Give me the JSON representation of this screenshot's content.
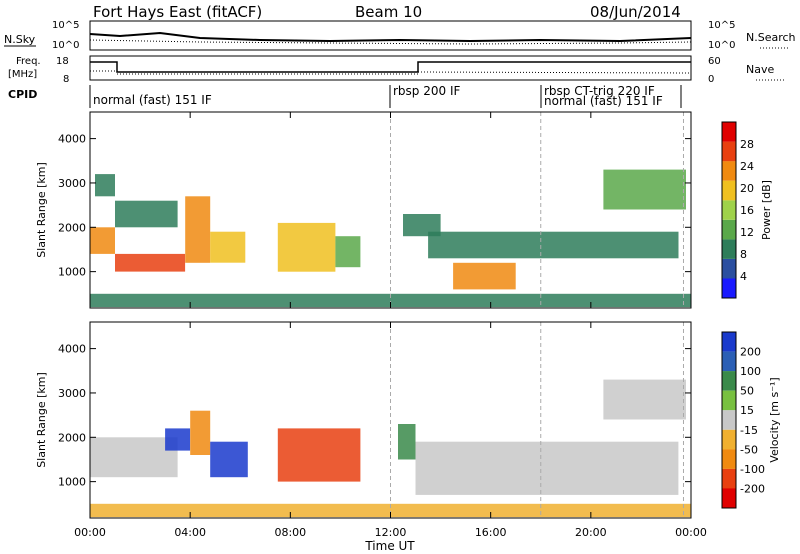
{
  "header": {
    "station": "Fort Hays East (fitACF)",
    "beam": "Beam 10",
    "date": "08/Jun/2014"
  },
  "noise_panel": {
    "left_label": "N.Sky",
    "left_ticks": [
      "10^5",
      "10^0"
    ],
    "right_ticks": [
      "10^5",
      "10^0"
    ],
    "right_label": "N.Search"
  },
  "freq_panel": {
    "left_label_line1": "Freq.",
    "left_label_line2": "[MHz]",
    "left_ticks": [
      "18",
      "8"
    ],
    "right_ticks": [
      "60",
      "0"
    ],
    "right_label": "Nave"
  },
  "cpid": {
    "label": "CPID",
    "modes": [
      {
        "name": "normal (fast) 151 IF",
        "start_h": 0
      },
      {
        "name": "rbsp 200 IF",
        "start_h": 12
      },
      {
        "name": "rbsp CT-trig 220 IF",
        "start_h": 18
      },
      {
        "name": "normal (fast) 151 IF",
        "start_h": 18
      }
    ]
  },
  "colors": {
    "power": [
      "#1a1aff",
      "#2b4fa0",
      "#2e7d5a",
      "#5aa84a",
      "#9fd24a",
      "#f0c020",
      "#f08a10",
      "#e84010",
      "#e00000"
    ],
    "velocity": [
      "#1a3acc",
      "#2b5fb5",
      "#3a8a4a",
      "#78c040",
      "#c8c8c8",
      "#f0b030",
      "#f08a10",
      "#e84010",
      "#e00000"
    ]
  },
  "chart_data": [
    {
      "type": "heatmap",
      "name": "power",
      "xlabel": "",
      "ylabel": "Slant Range [km]",
      "xlim": [
        0,
        24
      ],
      "ylim": [
        180,
        4600
      ],
      "yticks": [
        "1000",
        "2000",
        "3000",
        "4000"
      ],
      "yticks_values": [
        1000,
        2000,
        3000,
        4000
      ],
      "colorbar_label": "Power [dB]",
      "colorbar_ticks": [
        "4",
        "8",
        "12",
        "16",
        "20",
        "24",
        "28"
      ],
      "colorbar_range": [
        0,
        32
      ],
      "regions": [
        {
          "t": [
            0.0,
            1.0
          ],
          "r": [
            1400,
            2000
          ],
          "v": 22
        },
        {
          "t": [
            1.0,
            3.8
          ],
          "r": [
            1000,
            1400
          ],
          "v": 25
        },
        {
          "t": [
            3.8,
            4.8
          ],
          "r": [
            1200,
            2700
          ],
          "v": 22
        },
        {
          "t": [
            4.8,
            6.2
          ],
          "r": [
            1200,
            1900
          ],
          "v": 18
        },
        {
          "t": [
            0.2,
            1.0
          ],
          "r": [
            2700,
            3200
          ],
          "v": 10
        },
        {
          "t": [
            1.0,
            3.5
          ],
          "r": [
            2000,
            2600
          ],
          "v": 8
        },
        {
          "t": [
            7.5,
            9.8
          ],
          "r": [
            1000,
            2100
          ],
          "v": 18
        },
        {
          "t": [
            9.8,
            10.8
          ],
          "r": [
            1100,
            1800
          ],
          "v": 14
        },
        {
          "t": [
            12.5,
            14.0
          ],
          "r": [
            1800,
            2300
          ],
          "v": 8
        },
        {
          "t": [
            14.5,
            17.0
          ],
          "r": [
            600,
            1200
          ],
          "v": 24
        },
        {
          "t": [
            13.5,
            23.5
          ],
          "r": [
            1300,
            1900
          ],
          "v": 8
        },
        {
          "t": [
            20.5,
            23.8
          ],
          "r": [
            2400,
            3300
          ],
          "v": 14
        },
        {
          "t": [
            0.0,
            24.0
          ],
          "r": [
            200,
            500
          ],
          "v": 10
        }
      ]
    },
    {
      "type": "heatmap",
      "name": "velocity",
      "xlabel": "Time UT",
      "ylabel": "Slant Range [km]",
      "xlim": [
        0,
        24
      ],
      "ylim": [
        180,
        4600
      ],
      "xticks": [
        "00:00",
        "04:00",
        "08:00",
        "12:00",
        "16:00",
        "20:00",
        "00:00"
      ],
      "xticks_values": [
        0,
        4,
        8,
        12,
        16,
        20,
        24
      ],
      "yticks": [
        "1000",
        "2000",
        "3000",
        "4000"
      ],
      "yticks_values": [
        1000,
        2000,
        3000,
        4000
      ],
      "colorbar_label": "Velocity [m s⁻¹]",
      "colorbar_ticks": [
        "200",
        "100",
        "50",
        "15",
        "-15",
        "-50",
        "-100",
        "-200"
      ],
      "regions": [
        {
          "t": [
            0.0,
            3.5
          ],
          "r": [
            1100,
            2000
          ],
          "v": 0
        },
        {
          "t": [
            3.0,
            4.0
          ],
          "r": [
            1700,
            2200
          ],
          "v": 200
        },
        {
          "t": [
            4.0,
            4.8
          ],
          "r": [
            1600,
            2600
          ],
          "v": -80
        },
        {
          "t": [
            4.8,
            6.3
          ],
          "r": [
            1100,
            1900
          ],
          "v": 180
        },
        {
          "t": [
            7.5,
            10.8
          ],
          "r": [
            1000,
            2200
          ],
          "v": -120
        },
        {
          "t": [
            12.3,
            13.0
          ],
          "r": [
            1500,
            2300
          ],
          "v": 60
        },
        {
          "t": [
            13.0,
            23.5
          ],
          "r": [
            700,
            1900
          ],
          "v": 0
        },
        {
          "t": [
            20.5,
            23.8
          ],
          "r": [
            2400,
            3300
          ],
          "v": 0
        },
        {
          "t": [
            0.0,
            24.0
          ],
          "r": [
            200,
            500
          ],
          "v": -40
        }
      ]
    }
  ]
}
